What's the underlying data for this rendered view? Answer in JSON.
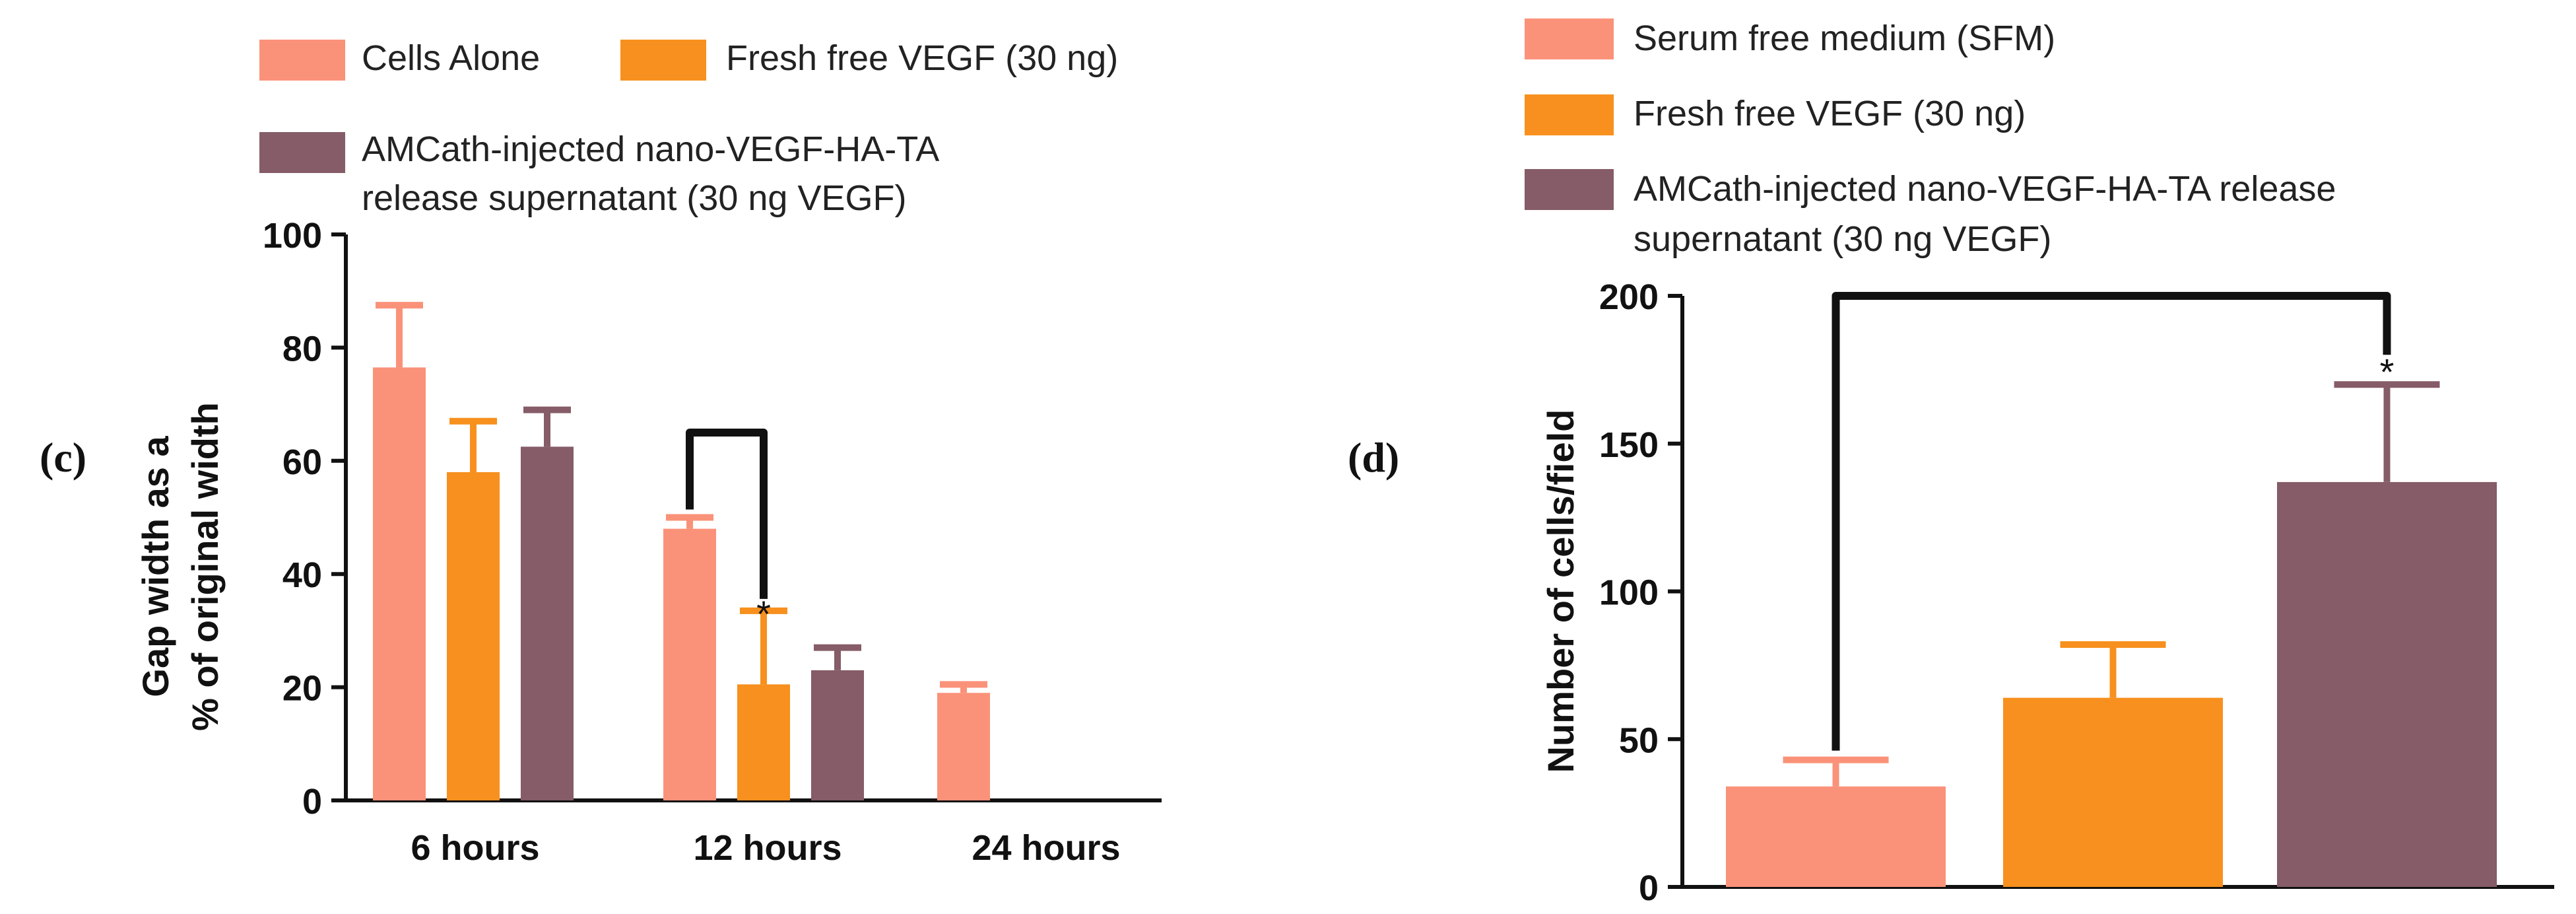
{
  "chart_data": [
    {
      "type": "bar",
      "panel_label": "(c)",
      "ylabel_line1": "Gap width as a",
      "ylabel_line2": "% of original width",
      "xlabel": "",
      "ylim": [
        0,
        100
      ],
      "yticks": [
        0,
        20,
        40,
        60,
        80,
        100
      ],
      "categories": [
        "6 hours",
        "12 hours",
        "24 hours"
      ],
      "legend_position": "top",
      "series": [
        {
          "name": "Cells Alone",
          "color": "#fa9279",
          "values": [
            76.5,
            48,
            19
          ],
          "errors": [
            11,
            2,
            1.5
          ]
        },
        {
          "name": "Fresh free VEGF (30 ng)",
          "color": "#f7901e",
          "values": [
            58,
            20.5,
            null
          ],
          "errors": [
            9,
            13,
            null
          ]
        },
        {
          "name": "AMCath-injected nano-VEGF-HA-TA release supernatant (30 ng VEGF)",
          "legend_line1": "AMCath-injected nano-VEGF-HA-TA",
          "legend_line2": "release supernatant (30 ng VEGF)",
          "color": "#855c67",
          "values": [
            62.5,
            23,
            null
          ],
          "errors": [
            6.5,
            4,
            null
          ]
        }
      ],
      "annotations": [
        {
          "type": "significance_bracket",
          "category": "12 hours",
          "from_series": 0,
          "to_series": 1,
          "bracket_value": 65,
          "label": "*"
        }
      ]
    },
    {
      "type": "bar",
      "panel_label": "(d)",
      "ylabel": "Number of cells/field",
      "xlabel": "",
      "ylim": [
        0,
        200
      ],
      "yticks": [
        0,
        50,
        100,
        150,
        200
      ],
      "categories": [
        "Serum free medium (SFM)",
        "Fresh free VEGF (30 ng)",
        "AMCath-injected nano-VEGF-HA-TA release supernatant (30 ng VEGF)"
      ],
      "legend_position": "top",
      "series": [
        {
          "name": "Serum free medium (SFM)",
          "color": "#fa9279",
          "value": 34,
          "error": 9
        },
        {
          "name": "Fresh free VEGF (30 ng)",
          "color": "#f7901e",
          "value": 64,
          "error": 18
        },
        {
          "name": "AMCath-injected nano-VEGF-HA-TA release supernatant (30 ng VEGF)",
          "legend_line1": "AMCath-injected nano-VEGF-HA-TA release",
          "legend_line2": "supernatant (30 ng VEGF)",
          "color": "#855c67",
          "value": 137,
          "error": 33
        }
      ],
      "annotations": [
        {
          "type": "significance_bracket",
          "from_series": 0,
          "to_series": 2,
          "bracket_value": 200,
          "label": "*"
        }
      ]
    }
  ]
}
